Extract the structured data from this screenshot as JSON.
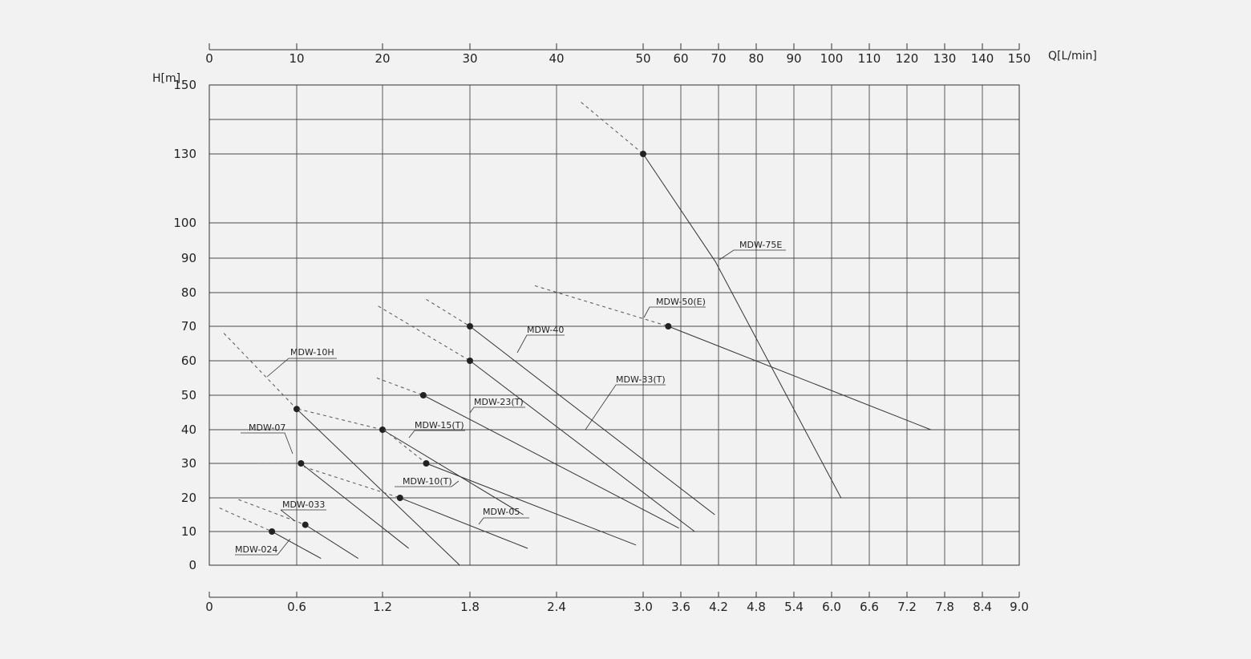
{
  "chart_data": {
    "type": "line",
    "title": "",
    "ylabel": "H[m]",
    "xlabel_top": "Q[L/min]",
    "ylim": [
      0,
      150
    ],
    "y_ticks": [
      0,
      10,
      20,
      30,
      40,
      50,
      60,
      70,
      80,
      90,
      100,
      130,
      150
    ],
    "x_bottom_ticks": [
      "0",
      "0.6",
      "1.2",
      "1.8",
      "2.4",
      "3.0",
      "3.6",
      "4.2",
      "4.8",
      "5.4",
      "6.0",
      "6.6",
      "7.2",
      "7.8",
      "8.4",
      "9.0"
    ],
    "x_top_ticks": [
      "0",
      "10",
      "20",
      "30",
      "40",
      "50",
      "60",
      "70",
      "80",
      "90",
      "100",
      "110",
      "120",
      "130",
      "140",
      "150"
    ],
    "series": [
      {
        "name": "MDW-024",
        "dashed": [
          [
            0.07,
            17
          ],
          [
            0.43,
            10
          ]
        ],
        "points": [
          [
            0.43,
            10
          ],
          [
            0.77,
            2
          ]
        ],
        "marker": [
          0.43,
          10
        ]
      },
      {
        "name": "MDW-033",
        "dashed": [
          [
            0.2,
            19.5
          ],
          [
            0.66,
            12
          ]
        ],
        "points": [
          [
            0.66,
            12
          ],
          [
            1.03,
            2
          ]
        ],
        "marker": [
          0.66,
          12
        ]
      },
      {
        "name": "MDW-07",
        "dashed": [
          [
            0.34,
            30
          ],
          [
            0.63,
            30
          ]
        ],
        "points": [
          [
            0.63,
            30
          ],
          [
            1.38,
            5
          ]
        ],
        "marker": [
          0.63,
          30
        ]
      },
      {
        "name": "MDW-10H",
        "dashed": [
          [
            0.1,
            68
          ],
          [
            0.6,
            46
          ]
        ],
        "points": [
          [
            0.6,
            46
          ],
          [
            1.73,
            0
          ]
        ],
        "marker": [
          0.6,
          46
        ]
      },
      {
        "name": "MDW-05",
        "dashed": [
          [
            0.65,
            29
          ],
          [
            1.32,
            20
          ]
        ],
        "points": [
          [
            1.32,
            20
          ],
          [
            2.2,
            5
          ]
        ],
        "marker": [
          1.32,
          20
        ]
      },
      {
        "name": "MDW-10(T)",
        "dashed": [
          [
            0.61,
            46
          ],
          [
            1.2,
            40
          ]
        ],
        "points": [
          [
            1.2,
            40
          ],
          [
            2.17,
            15
          ]
        ],
        "marker": [
          1.2,
          40
        ]
      },
      {
        "name": "MDW-15(T)",
        "dashed": [
          [
            1.21,
            40
          ],
          [
            1.5,
            30
          ]
        ],
        "points": [
          [
            1.5,
            30
          ],
          [
            2.95,
            6
          ]
        ],
        "marker": [
          1.5,
          30
        ]
      },
      {
        "name": "MDW-23(T)",
        "dashed": [
          [
            1.16,
            55
          ],
          [
            1.48,
            50
          ]
        ],
        "points": [
          [
            1.48,
            50
          ],
          [
            3.57,
            11
          ]
        ],
        "marker": [
          1.48,
          50
        ]
      },
      {
        "name": "MDW-33(T)",
        "dashed": [
          [
            1.17,
            76
          ],
          [
            1.8,
            60
          ]
        ],
        "points": [
          [
            1.8,
            60
          ],
          [
            3.82,
            10
          ]
        ],
        "marker": [
          1.8,
          60
        ]
      },
      {
        "name": "MDW-40",
        "dashed": [
          [
            1.5,
            78
          ],
          [
            1.8,
            70
          ]
        ],
        "points": [
          [
            1.8,
            70
          ],
          [
            4.14,
            15
          ]
        ],
        "marker": [
          1.8,
          70
        ]
      },
      {
        "name": "MDW-50(E)",
        "dashed": [
          [
            2.25,
            82
          ],
          [
            3.4,
            70
          ]
        ],
        "points": [
          [
            3.4,
            70
          ],
          [
            7.58,
            40
          ]
        ],
        "marker": [
          3.4,
          70
        ]
      },
      {
        "name": "MDW-75E",
        "dashed": [
          [
            2.57,
            145
          ],
          [
            3.0,
            130
          ]
        ],
        "points": [
          [
            3.0,
            130
          ],
          [
            4.15,
            89
          ],
          [
            6.15,
            20
          ]
        ],
        "marker": [
          3.0,
          130
        ]
      }
    ],
    "labels": [
      {
        "text": "MDW-024",
        "name": "MDW-024"
      },
      {
        "text": "MDW-033",
        "name": "MDW-033"
      },
      {
        "text": "MDW-07",
        "name": "MDW-07"
      },
      {
        "text": "MDW-10H",
        "name": "MDW-10H"
      },
      {
        "text": "MDW-05",
        "name": "MDW-05"
      },
      {
        "text": "MDW-10(T)",
        "name": "MDW-10(T)"
      },
      {
        "text": "MDW-15(T)",
        "name": "MDW-15(T)"
      },
      {
        "text": "MDW-23(T)",
        "name": "MDW-23(T)"
      },
      {
        "text": "MDW-33(T)",
        "name": "MDW-33(T)"
      },
      {
        "text": "MDW-40",
        "name": "MDW-40"
      },
      {
        "text": "MDW-50(E)",
        "name": "MDW-50(E)"
      },
      {
        "text": "MDW-75E",
        "name": "MDW-75E"
      }
    ],
    "grid": true
  }
}
